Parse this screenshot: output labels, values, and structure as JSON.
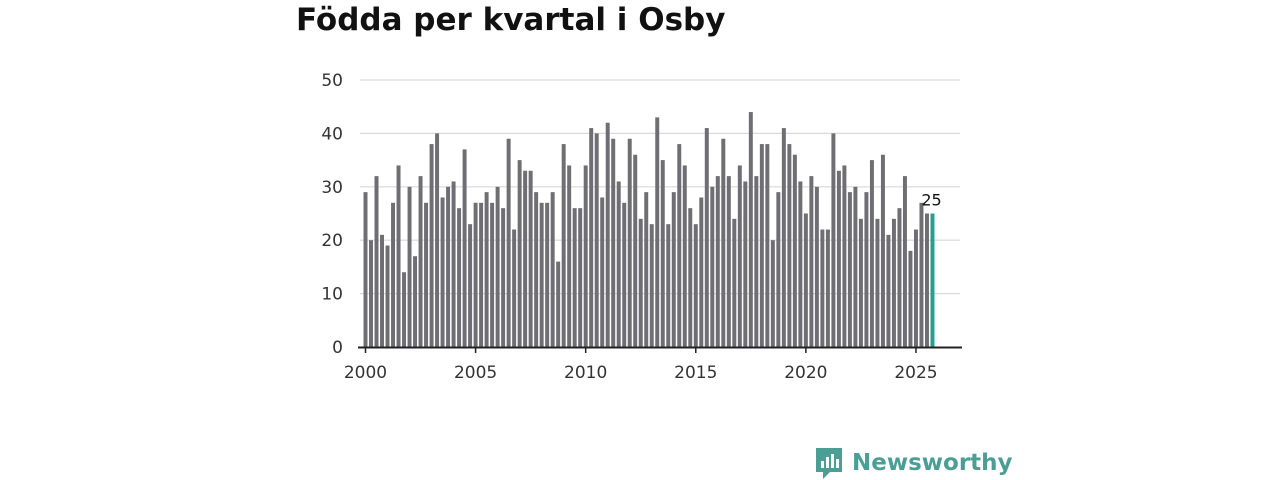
{
  "title": "Födda per kvartal i Osby",
  "brand": {
    "name": "Newsworthy",
    "icon": "newsworthy-logo-icon",
    "color": "#4a9e94"
  },
  "colors": {
    "bar": "#6e6e73",
    "highlight": "#2a9d8f",
    "grid": "#d9d9d9",
    "axis": "#222222"
  },
  "chart_data": {
    "type": "bar",
    "title": "Födda per kvartal i Osby",
    "xlabel": "",
    "ylabel": "",
    "ylim": [
      0,
      50
    ],
    "yticks": [
      0,
      10,
      20,
      30,
      40,
      50
    ],
    "xlim": [
      1999.75,
      2027.0
    ],
    "xticks": [
      2000,
      2005,
      2010,
      2015,
      2020,
      2025
    ],
    "bar_width_years": 0.18,
    "highlight_last": true,
    "last_label": "25",
    "x": [
      2000.0,
      2000.25,
      2000.5,
      2000.75,
      2001.0,
      2001.25,
      2001.5,
      2001.75,
      2002.0,
      2002.25,
      2002.5,
      2002.75,
      2003.0,
      2003.25,
      2003.5,
      2003.75,
      2004.0,
      2004.25,
      2004.5,
      2004.75,
      2005.0,
      2005.25,
      2005.5,
      2005.75,
      2006.0,
      2006.25,
      2006.5,
      2006.75,
      2007.0,
      2007.25,
      2007.5,
      2007.75,
      2008.0,
      2008.25,
      2008.5,
      2008.75,
      2009.0,
      2009.25,
      2009.5,
      2009.75,
      2010.0,
      2010.25,
      2010.5,
      2010.75,
      2011.0,
      2011.25,
      2011.5,
      2011.75,
      2012.0,
      2012.25,
      2012.5,
      2012.75,
      2013.0,
      2013.25,
      2013.5,
      2013.75,
      2014.0,
      2014.25,
      2014.5,
      2014.75,
      2015.0,
      2015.25,
      2015.5,
      2015.75,
      2016.0,
      2016.25,
      2016.5,
      2016.75,
      2017.0,
      2017.25,
      2017.5,
      2017.75,
      2018.0,
      2018.25,
      2018.5,
      2018.75,
      2019.0,
      2019.25,
      2019.5,
      2019.75,
      2020.0,
      2020.25,
      2020.5,
      2020.75,
      2021.0,
      2021.25,
      2021.5,
      2021.75,
      2022.0,
      2022.25,
      2022.5,
      2022.75,
      2023.0,
      2023.25,
      2023.5,
      2023.75,
      2024.0,
      2024.25,
      2024.5,
      2024.75,
      2025.0,
      2025.25,
      2025.5,
      2025.75
    ],
    "values": [
      29,
      20,
      32,
      21,
      19,
      27,
      34,
      14,
      30,
      17,
      32,
      27,
      38,
      40,
      28,
      30,
      31,
      26,
      37,
      23,
      27,
      27,
      29,
      27,
      30,
      26,
      39,
      22,
      35,
      33,
      33,
      29,
      27,
      27,
      29,
      16,
      38,
      34,
      26,
      26,
      34,
      41,
      40,
      28,
      42,
      39,
      31,
      27,
      39,
      36,
      24,
      29,
      23,
      43,
      35,
      23,
      29,
      38,
      34,
      26,
      23,
      28,
      41,
      30,
      32,
      39,
      32,
      24,
      34,
      31,
      44,
      32,
      38,
      38,
      20,
      29,
      41,
      38,
      36,
      31,
      25,
      32,
      30,
      22,
      22,
      40,
      33,
      34,
      29,
      30,
      24,
      29,
      35,
      24,
      36,
      21,
      24,
      26,
      32,
      18,
      22,
      27,
      25,
      25
    ]
  }
}
